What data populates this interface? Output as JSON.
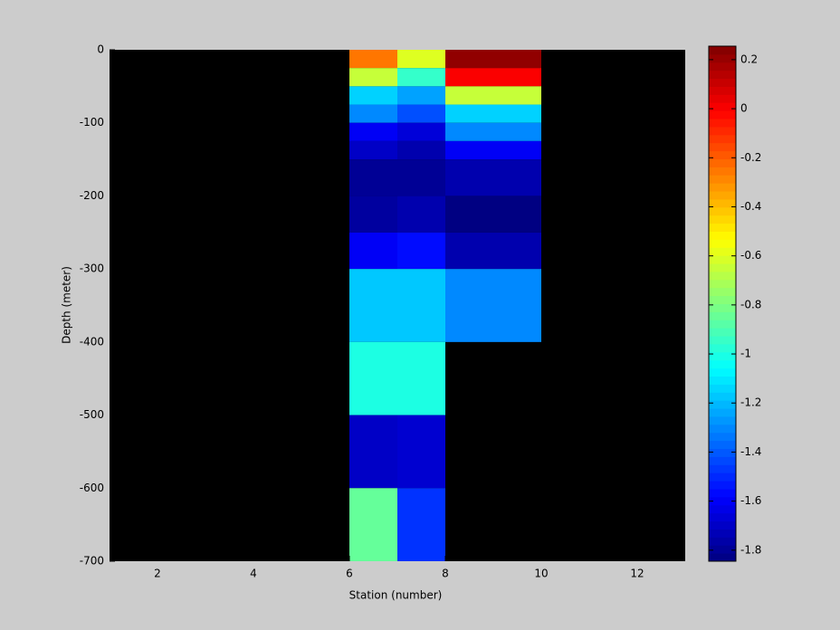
{
  "chart_data": {
    "type": "heatmap",
    "xlabel": "Station (number)",
    "ylabel": "Depth (meter)",
    "xlim": [
      1,
      13
    ],
    "ylim": [
      -700,
      0
    ],
    "xticks": [
      2,
      4,
      6,
      8,
      10,
      12
    ],
    "yticks": [
      0,
      -100,
      -200,
      -300,
      -400,
      -500,
      -600,
      -700
    ],
    "x_edges": [
      6,
      7,
      8,
      10
    ],
    "y_edges": [
      0,
      -25,
      -50,
      -75,
      -100,
      -125,
      -150,
      -200,
      -250,
      -300,
      -400,
      -500,
      -600,
      -700
    ],
    "values": [
      [
        -0.25,
        -0.6,
        0.22
      ],
      [
        -0.65,
        -0.95,
        0.0
      ],
      [
        -1.15,
        -1.25,
        -0.65
      ],
      [
        -1.3,
        -1.42,
        -1.15
      ],
      [
        -1.6,
        -1.66,
        -1.3
      ],
      [
        -1.7,
        -1.75,
        -1.6
      ],
      [
        -1.8,
        -1.8,
        -1.75
      ],
      [
        -1.78,
        -1.75,
        -1.84
      ],
      [
        -1.6,
        -1.56,
        -1.75
      ],
      [
        -1.17,
        -1.17,
        -1.3
      ],
      [
        -1.0,
        -1.0,
        null
      ],
      [
        -1.7,
        -1.68,
        null
      ],
      [
        -0.85,
        -1.48,
        null
      ]
    ],
    "colormap": "jet",
    "background": "#000000",
    "clim": [
      -1.845,
      0.255
    ],
    "cticks": [
      0.2,
      0,
      -0.2,
      -0.4,
      -0.6,
      -0.8,
      -1,
      -1.2,
      -1.4,
      -1.6,
      -1.8
    ]
  }
}
